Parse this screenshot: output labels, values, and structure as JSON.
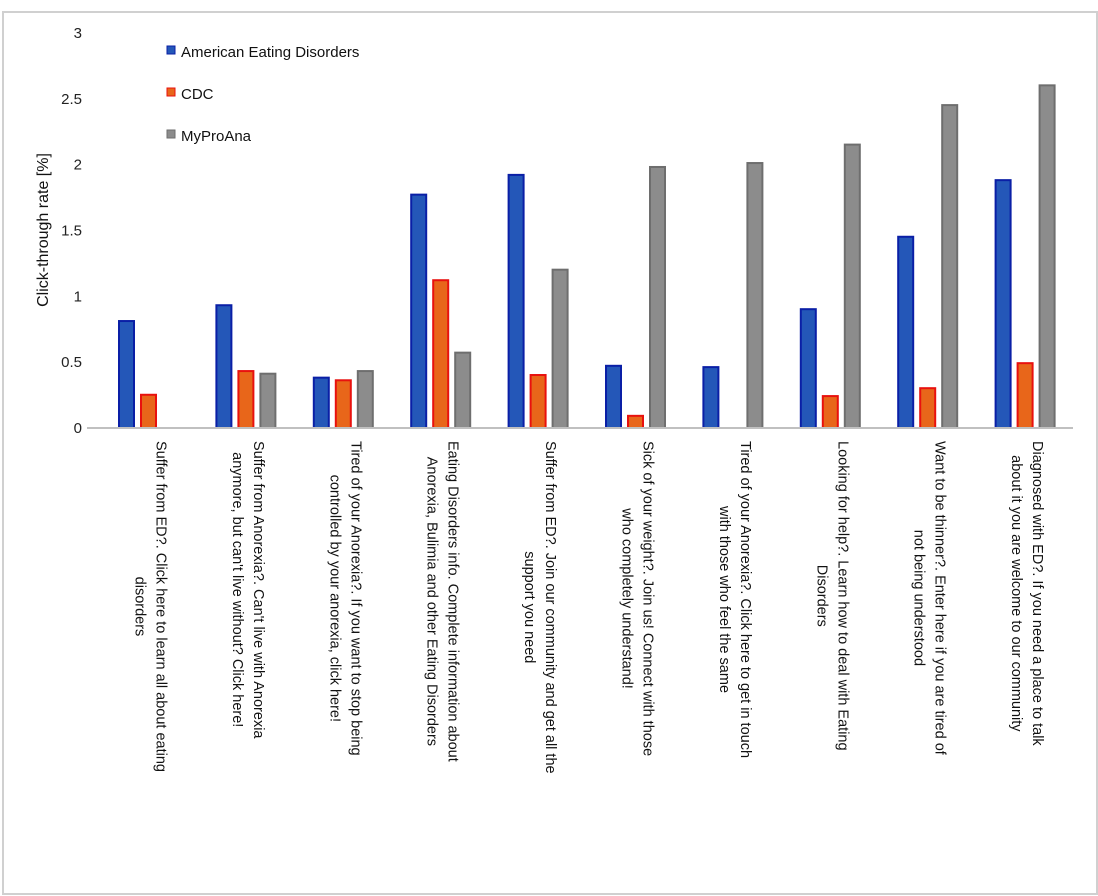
{
  "chart_data": {
    "type": "bar",
    "title": "",
    "xlabel": "",
    "ylabel": "Click-through rate [%]",
    "ylim": [
      0,
      3
    ],
    "yticks": [
      "0",
      "0.5",
      "1",
      "1.5",
      "2",
      "2.5",
      "3"
    ],
    "grid": false,
    "legend_position": "top-left",
    "categories": [
      [
        "Suffer from ED?. Click here to learn all about eating",
        "disorders"
      ],
      [
        "Suffer from Anorexia?. Can't live with Anorexia",
        "anymore, but can't live without? Click here!"
      ],
      [
        "Tired of your Anorexia?. If you want to stop being",
        "controlled by your anorexia, click here!"
      ],
      [
        "Eating Disorders info. Complete information about",
        "Anorexia, Bulimia and other Eating Disorders"
      ],
      [
        "Suffer from ED?. Join our community and get all the",
        "support you need"
      ],
      [
        "Sick of your weight?. Join us! Connect with those",
        "who completely understand!"
      ],
      [
        "Tired of your Anorexia?. Click here to get in touch",
        "with those who feel the same"
      ],
      [
        "Looking for help?. Learn how to deal with Eating",
        "Disorders"
      ],
      [
        "Want to be thinner?. Enter here if you are tired of",
        "not being understood"
      ],
      [
        "Diagnosed with ED?. If you need a place to talk",
        "about it you are welcome to our community"
      ]
    ],
    "series": [
      {
        "name": "American Eating Disorders",
        "color": "#2457b8",
        "border": "#0a1fa6",
        "values": [
          0.82,
          0.94,
          0.39,
          1.78,
          1.93,
          0.48,
          0.47,
          0.91,
          1.46,
          1.89
        ]
      },
      {
        "name": "CDC",
        "color": "#e8661a",
        "border": "#e8110e",
        "values": [
          0.26,
          0.44,
          0.37,
          1.13,
          0.41,
          0.1,
          0,
          0.25,
          0.31,
          0.5
        ]
      },
      {
        "name": "MyProAna",
        "color": "#8c8c8c",
        "border": "#6e6e6e",
        "values": [
          0,
          0.42,
          0.44,
          0.58,
          1.21,
          1.99,
          2.02,
          2.16,
          2.46,
          2.61
        ]
      }
    ]
  }
}
